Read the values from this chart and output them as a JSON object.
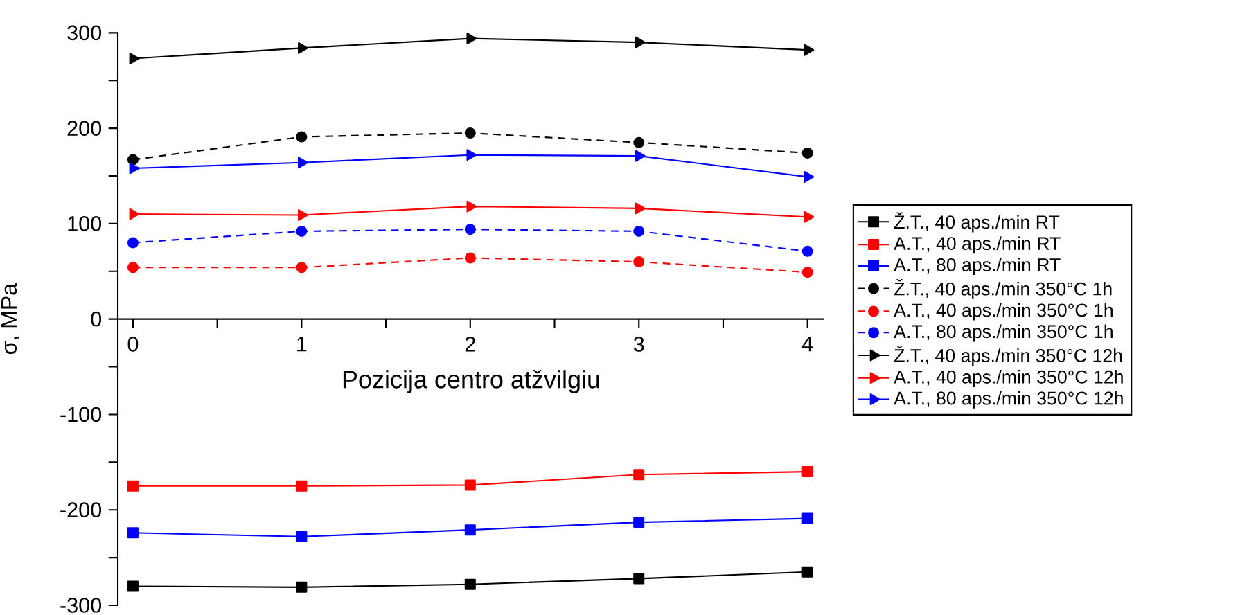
{
  "chart_data": {
    "type": "line",
    "xlabel": "Pozicija centro atžvilgiu",
    "ylabel": "σ, MPa",
    "x": [
      0,
      1,
      2,
      3,
      4
    ],
    "xlim": [
      -0.09,
      4.1
    ],
    "ylim": [
      -300,
      300
    ],
    "xticks": [
      0,
      {
        "value": 0.5,
        "label": null
      },
      1,
      {
        "value": 1.5,
        "label": null
      },
      2,
      {
        "value": 2.5,
        "label": null
      },
      3,
      {
        "value": 3.5,
        "label": null
      },
      4
    ],
    "yticks": [
      -300,
      {
        "value": -250,
        "label": null
      },
      -200,
      {
        "value": -150,
        "label": null
      },
      -100,
      {
        "value": -50,
        "label": null
      },
      0,
      {
        "value": 50,
        "label": null
      },
      100,
      {
        "value": 150,
        "label": null
      },
      200,
      {
        "value": 250,
        "label": null
      },
      300
    ],
    "legend": "right",
    "series": [
      {
        "name": "Ž.T., 40 aps./min RT",
        "color": "#000000",
        "marker": "square",
        "line_style": "solid",
        "values": [
          -280,
          -281,
          -278,
          -272,
          -265
        ]
      },
      {
        "name": "A.T., 40 aps./min RT",
        "color": "#ff0000",
        "marker": "square",
        "line_style": "solid",
        "values": [
          -175,
          -175,
          -174,
          -163,
          -160
        ]
      },
      {
        "name": "A.T., 80 aps./min RT",
        "color": "#0000ff",
        "marker": "square",
        "line_style": "solid",
        "values": [
          -224,
          -228,
          -221,
          -213,
          -209
        ]
      },
      {
        "name": "Ž.T., 40 aps./min 350°C 1h",
        "color": "#000000",
        "marker": "circle",
        "line_style": "dashed",
        "values": [
          167,
          191,
          195,
          185,
          174
        ]
      },
      {
        "name": "A.T., 40 aps./min 350°C 1h",
        "color": "#ff0000",
        "marker": "circle",
        "line_style": "dashed",
        "values": [
          54,
          54,
          64,
          60,
          49
        ]
      },
      {
        "name": "A.T., 80 aps./min 350°C 1h",
        "color": "#0000ff",
        "marker": "circle",
        "line_style": "dashed",
        "values": [
          80,
          92,
          94,
          92,
          71
        ]
      },
      {
        "name": "Ž.T., 40 aps./min 350°C 12h",
        "color": "#000000",
        "marker": "triangle",
        "line_style": "solid",
        "values": [
          273,
          284,
          294,
          290,
          282
        ]
      },
      {
        "name": "A.T., 40 aps./min 350°C 12h",
        "color": "#ff0000",
        "marker": "triangle",
        "line_style": "solid",
        "values": [
          110,
          109,
          118,
          116,
          107
        ]
      },
      {
        "name": "A.T., 80 aps./min 350°C 12h",
        "color": "#0000ff",
        "marker": "triangle",
        "line_style": "solid",
        "values": [
          158,
          164,
          172,
          171,
          149
        ]
      }
    ]
  }
}
